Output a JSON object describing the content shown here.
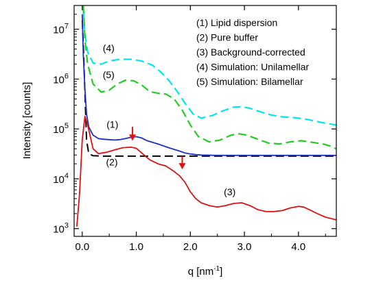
{
  "chart_data": {
    "type": "line",
    "xlabel": "q [nm",
    "xlabel_sup": "-1",
    "xlabel_close": "]",
    "ylabel": "Intensity [counts]",
    "xlim": [
      -0.15,
      4.7
    ],
    "ylim": [
      700,
      30000000
    ],
    "yscale": "log",
    "grid": false,
    "legend_position": "top-right",
    "x_ticks": [
      {
        "value": 0,
        "label": "0.0"
      },
      {
        "value": 1,
        "label": "1.0"
      },
      {
        "value": 2,
        "label": "2.0"
      },
      {
        "value": 3,
        "label": "3.0"
      },
      {
        "value": 4,
        "label": "4.0"
      }
    ],
    "y_ticks": [
      {
        "value": 1000,
        "base": "10",
        "exp": "3"
      },
      {
        "value": 10000,
        "base": "10",
        "exp": "4"
      },
      {
        "value": 100000,
        "base": "10",
        "exp": "5"
      },
      {
        "value": 1000000,
        "base": "10",
        "exp": "6"
      },
      {
        "value": 10000000,
        "base": "10",
        "exp": "7"
      }
    ],
    "legend": [
      "(1)  Lipid dispersion",
      "(2)  Pure buffer",
      "(3)  Background-corrected",
      "(4)  Simulation: Unilamellar",
      "(5)  Simulation: Bilamellar"
    ],
    "series": [
      {
        "color": "#00e5ee",
        "dash": "dashed",
        "x": [
          0.02,
          0.05,
          0.1,
          0.2,
          0.35,
          0.5,
          0.7,
          0.9,
          1.1,
          1.3,
          1.45,
          1.6,
          1.75,
          1.9,
          2.05,
          2.2,
          2.4,
          2.6,
          2.8,
          2.95,
          3.1,
          3.3,
          3.5,
          3.7,
          3.9,
          4.1,
          4.3,
          4.5,
          4.7
        ],
        "y": [
          25000000,
          8000000,
          3500000,
          2100000,
          2000000,
          2300000,
          2500000,
          2500000,
          2300000,
          1900000,
          1400000,
          950000,
          580000,
          330000,
          200000,
          165000,
          185000,
          230000,
          275000,
          280000,
          260000,
          220000,
          190000,
          175000,
          170000,
          160000,
          145000,
          130000,
          120000
        ]
      },
      {
        "color": "#22cc22",
        "dash": "dashed",
        "x": [
          0.02,
          0.05,
          0.1,
          0.2,
          0.35,
          0.5,
          0.65,
          0.8,
          0.95,
          1.1,
          1.25,
          1.4,
          1.55,
          1.7,
          1.85,
          2.0,
          2.15,
          2.35,
          2.55,
          2.75,
          2.9,
          3.05,
          3.25,
          3.45,
          3.65,
          3.85,
          4.05,
          4.25,
          4.45,
          4.6,
          4.7
        ],
        "y": [
          30000000,
          6000000,
          2000000,
          800000,
          550000,
          600000,
          800000,
          950000,
          930000,
          760000,
          560000,
          520000,
          500000,
          400000,
          240000,
          120000,
          70000,
          55000,
          60000,
          75000,
          80000,
          75000,
          62000,
          52000,
          50000,
          55000,
          58000,
          54000,
          50000,
          45000,
          40000
        ]
      },
      {
        "color": "#000000",
        "dash": "dashed",
        "x": [
          0.0,
          0.02,
          0.05,
          0.08,
          0.12,
          0.2,
          0.4,
          1.0,
          2.0,
          3.0,
          4.0,
          4.7
        ],
        "y": [
          15000000,
          5000000,
          500000,
          60000,
          32000,
          29000,
          28500,
          28500,
          28500,
          28500,
          28500,
          28500
        ]
      },
      {
        "color": "#1a2fc8",
        "dash": "solid",
        "x": [
          0.0,
          0.02,
          0.05,
          0.08,
          0.12,
          0.2,
          0.3,
          0.4,
          0.5,
          0.6,
          0.7,
          0.8,
          0.9,
          1.0,
          1.1,
          1.2,
          1.4,
          1.6,
          1.8,
          1.9,
          2.0,
          2.1,
          2.2,
          2.5,
          3.0,
          3.5,
          4.0,
          4.7
        ],
        "y": [
          20000000,
          3000000,
          600000,
          200000,
          110000,
          75000,
          64000,
          62000,
          61000,
          60000,
          61000,
          64000,
          68000,
          70000,
          66000,
          58000,
          50000,
          42000,
          36000,
          33000,
          31500,
          30500,
          30000,
          29500,
          29500,
          29500,
          29500,
          29500
        ]
      },
      {
        "color": "#dd1111",
        "dash": "solid",
        "x": [
          -0.1,
          -0.05,
          0.0,
          0.05,
          0.1,
          0.15,
          0.2,
          0.3,
          0.45,
          0.6,
          0.75,
          0.9,
          1.0,
          1.1,
          1.25,
          1.4,
          1.55,
          1.7,
          1.8,
          1.9,
          2.0,
          2.1,
          2.2,
          2.35,
          2.5,
          2.65,
          2.8,
          2.95,
          3.1,
          3.25,
          3.4,
          3.55,
          3.7,
          3.85,
          4.0,
          4.1,
          4.2,
          4.35,
          4.5,
          4.7
        ],
        "y": [
          1100,
          5000,
          60000,
          180000,
          120000,
          70000,
          40000,
          32000,
          34000,
          38000,
          42000,
          43000,
          41000,
          33000,
          24000,
          20000,
          18000,
          14000,
          11500,
          8500,
          5500,
          4000,
          3300,
          2900,
          2700,
          2900,
          3200,
          3300,
          2900,
          2400,
          2200,
          2200,
          2300,
          2600,
          2800,
          2700,
          2400,
          2000,
          1700,
          1500
        ]
      }
    ],
    "annotations": [
      {
        "text": "(4)",
        "x": 0.38,
        "y": 3600000
      },
      {
        "text": "(5)",
        "x": 0.38,
        "y": 1050000
      },
      {
        "text": "(1)",
        "x": 0.45,
        "y": 105000
      },
      {
        "text": "(2)",
        "x": 0.44,
        "y": 18500
      },
      {
        "text": "(3)",
        "x": 2.62,
        "y": 4700
      }
    ],
    "arrows": [
      {
        "color": "#dd1111",
        "x": 0.93,
        "y_from": 110000,
        "y_to": 58000
      },
      {
        "color": "#dd1111",
        "x": 1.85,
        "y_from": 28500,
        "y_to": 15500
      }
    ]
  }
}
